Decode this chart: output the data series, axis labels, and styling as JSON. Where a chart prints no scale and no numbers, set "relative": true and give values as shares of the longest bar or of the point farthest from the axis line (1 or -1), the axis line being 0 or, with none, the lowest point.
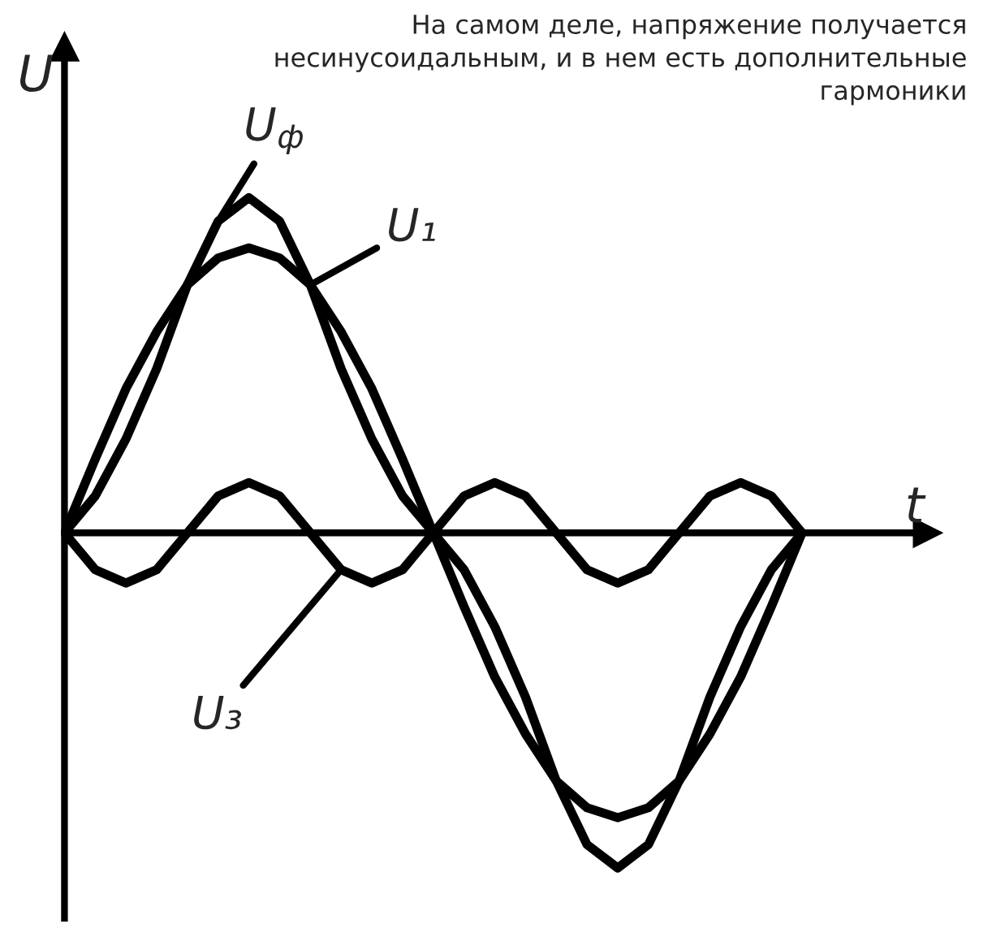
{
  "chart_data": {
    "type": "line",
    "relative": true,
    "xlabel": "t",
    "ylabel": "U",
    "categories": [
      null,
      null,
      null,
      null,
      null,
      null,
      null,
      null,
      null,
      null,
      null,
      null,
      null,
      null,
      null,
      null,
      null,
      null,
      null,
      null,
      null,
      null,
      null,
      null,
      null
    ],
    "series": [
      {
        "name": "U$_{ф}$",
        "color": "#000000",
        "values": [
          0,
          0.11,
          0.28,
          0.49,
          0.74,
          0.93,
          1.0,
          0.93,
          0.74,
          0.49,
          0.28,
          0.11,
          0,
          -0.11,
          -0.28,
          -0.49,
          -0.74,
          -0.93,
          -1.0,
          -0.93,
          -0.74,
          -0.49,
          -0.28,
          -0.11,
          0
        ]
      },
      {
        "name": "U₁",
        "color": "#000000",
        "values": [
          0,
          0.22,
          0.43,
          0.6,
          0.74,
          0.82,
          0.85,
          0.82,
          0.74,
          0.6,
          0.43,
          0.22,
          0,
          -0.22,
          -0.43,
          -0.6,
          -0.74,
          -0.82,
          -0.85,
          -0.82,
          -0.74,
          -0.6,
          -0.43,
          -0.22,
          0
        ]
      },
      {
        "name": "U₃",
        "color": "#000000",
        "values": [
          0,
          -0.11,
          -0.15,
          -0.11,
          0,
          0.11,
          0.15,
          0.11,
          0,
          -0.11,
          -0.15,
          -0.11,
          0,
          0.11,
          0.15,
          0.11,
          0,
          -0.11,
          -0.15,
          -0.11,
          0,
          0.11,
          0.15,
          0.11,
          0
        ]
      }
    ],
    "annotations": [
      "На самом деле, напряжение получается\nнесинусоидальным, и в нем есть дополнительные\nгармоники"
    ],
    "line_style": "solid",
    "marker": "none",
    "legend": false
  }
}
